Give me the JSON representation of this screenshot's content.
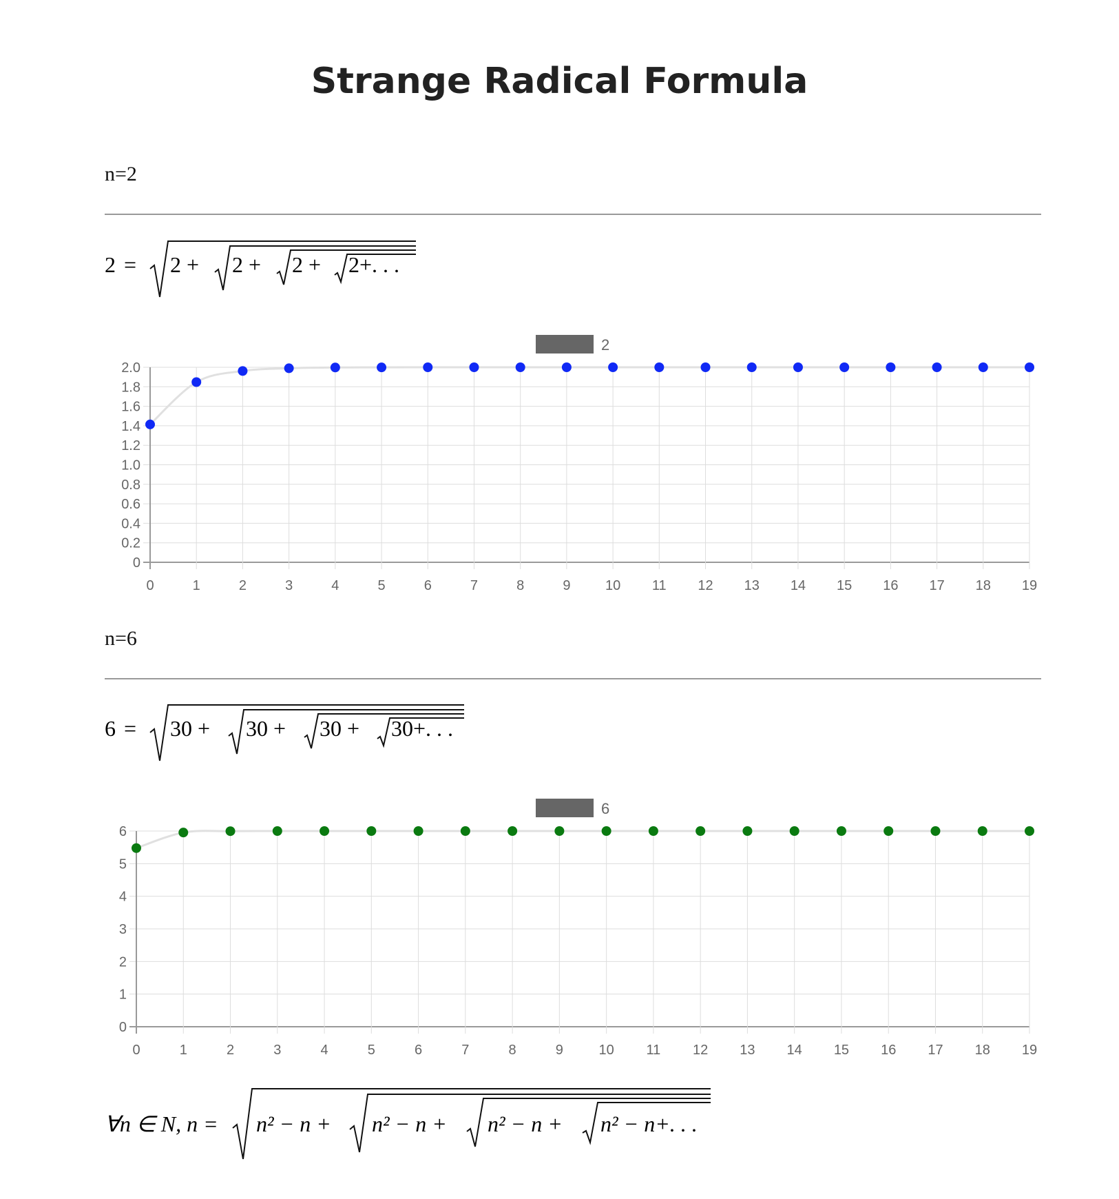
{
  "page": {
    "title": "Strange Radical Formula"
  },
  "sections": [
    {
      "label": "n=2",
      "formula": {
        "lhs": "2",
        "eq": "=",
        "terms": [
          "2 +",
          "2 +",
          "2 +",
          "2+. . ."
        ]
      }
    },
    {
      "label": "n=6",
      "formula": {
        "lhs": "6",
        "eq": "=",
        "terms": [
          "30 +",
          "30 +",
          "30 +",
          "30+. . ."
        ]
      }
    }
  ],
  "general_formula": {
    "lhs": "∀n ∈ N, n =",
    "terms": [
      "n² − n +",
      "n² − n +",
      "n² − n +",
      "n² − n+. . ."
    ]
  },
  "chart_data": [
    {
      "type": "line",
      "legend": [
        "2"
      ],
      "x": [
        0,
        1,
        2,
        3,
        4,
        5,
        6,
        7,
        8,
        9,
        10,
        11,
        12,
        13,
        14,
        15,
        16,
        17,
        18,
        19
      ],
      "series": [
        {
          "name": "2",
          "values": [
            1.414,
            1.848,
            1.962,
            1.99,
            1.998,
            1.999,
            2.0,
            2.0,
            2.0,
            2.0,
            2.0,
            2.0,
            2.0,
            2.0,
            2.0,
            2.0,
            2.0,
            2.0,
            2.0,
            2.0
          ],
          "point_color": "#1029f5",
          "line_color": "#e0e0e0"
        }
      ],
      "ylim": [
        0,
        2.0
      ],
      "yticks": [
        "0",
        "0.2",
        "0.4",
        "0.6",
        "0.8",
        "1.0",
        "1.2",
        "1.4",
        "1.6",
        "1.8",
        "2.0"
      ],
      "ytick_values": [
        0,
        0.2,
        0.4,
        0.6,
        0.8,
        1.0,
        1.2,
        1.4,
        1.6,
        1.8,
        2.0
      ],
      "legend_swatch_color": "#666666",
      "grid": true,
      "legend_position": "top-center"
    },
    {
      "type": "line",
      "legend": [
        "6"
      ],
      "x": [
        0,
        1,
        2,
        3,
        4,
        5,
        6,
        7,
        8,
        9,
        10,
        11,
        12,
        13,
        14,
        15,
        16,
        17,
        18,
        19
      ],
      "series": [
        {
          "name": "6",
          "values": [
            5.477,
            5.954,
            5.996,
            6.0,
            6.0,
            6.0,
            6.0,
            6.0,
            6.0,
            6.0,
            6.0,
            6.0,
            6.0,
            6.0,
            6.0,
            6.0,
            6.0,
            6.0,
            6.0,
            6.0
          ],
          "point_color": "#0a7a10",
          "line_color": "#e0e0e0"
        }
      ],
      "ylim": [
        0,
        6
      ],
      "yticks": [
        "0",
        "1",
        "2",
        "3",
        "4",
        "5",
        "6"
      ],
      "ytick_values": [
        0,
        1,
        2,
        3,
        4,
        5,
        6
      ],
      "legend_swatch_color": "#666666",
      "grid": true,
      "legend_position": "top-center"
    }
  ]
}
